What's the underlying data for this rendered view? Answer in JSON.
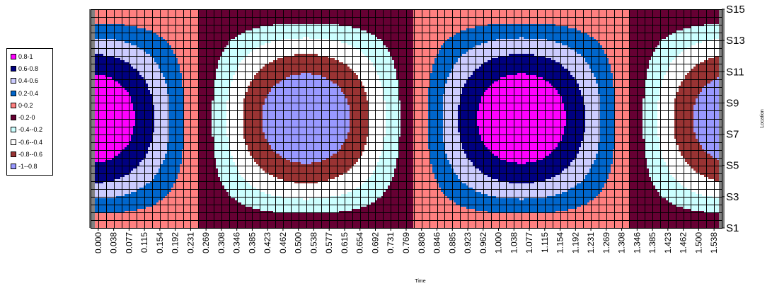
{
  "chart_data": {
    "type": "heatmap",
    "title": "",
    "xlabel": "Time",
    "ylabel": "Location",
    "x_tick_labels": [
      "0.000",
      "0.038",
      "0.077",
      "0.115",
      "0.154",
      "0.192",
      "0.231",
      "0.269",
      "0.308",
      "0.346",
      "0.385",
      "0.423",
      "0.462",
      "0.500",
      "0.538",
      "0.577",
      "0.615",
      "0.654",
      "0.692",
      "0.731",
      "0.769",
      "0.808",
      "0.846",
      "0.885",
      "0.923",
      "0.962",
      "1.000",
      "1.038",
      "1.077",
      "1.115",
      "1.154",
      "1.192",
      "1.231",
      "1.269",
      "1.308",
      "1.346",
      "1.385",
      "1.423",
      "1.462",
      "1.500",
      "1.538"
    ],
    "y_tick_labels": [
      "S1",
      "S3",
      "S5",
      "S7",
      "S9",
      "S11",
      "S13",
      "S15"
    ],
    "y_range": [
      1,
      15
    ],
    "x_range": [
      0,
      1.577
    ],
    "surface": "u = cos(2πt/1.0766) · sin(π·(s−1)/14)",
    "legend_position": "left",
    "legend": [
      {
        "label": "0.8-1",
        "min": 0.8,
        "max": 1.0,
        "color": "#ff00ff"
      },
      {
        "label": "0.6-0.8",
        "min": 0.6,
        "max": 0.8,
        "color": "#000080"
      },
      {
        "label": "0.4-0.6",
        "min": 0.4,
        "max": 0.6,
        "color": "#ccccff"
      },
      {
        "label": "0.2-0.4",
        "min": 0.2,
        "max": 0.4,
        "color": "#0066cc"
      },
      {
        "label": "0-0.2",
        "min": 0.0,
        "max": 0.2,
        "color": "#ff8080"
      },
      {
        "label": "-0.2-0",
        "min": -0.2,
        "max": 0.0,
        "color": "#660033"
      },
      {
        "label": "-0.4--0.2",
        "min": -0.4,
        "max": -0.2,
        "color": "#ccffff"
      },
      {
        "label": "-0.6--0.4",
        "min": -0.6,
        "max": -0.4,
        "color": "#ffffff"
      },
      {
        "label": "-0.8--0.6",
        "min": -0.8,
        "max": -0.6,
        "color": "#993333"
      },
      {
        "label": "-1--0.8",
        "min": -1.0,
        "max": -0.8,
        "color": "#9999ff"
      }
    ],
    "grid": true
  }
}
